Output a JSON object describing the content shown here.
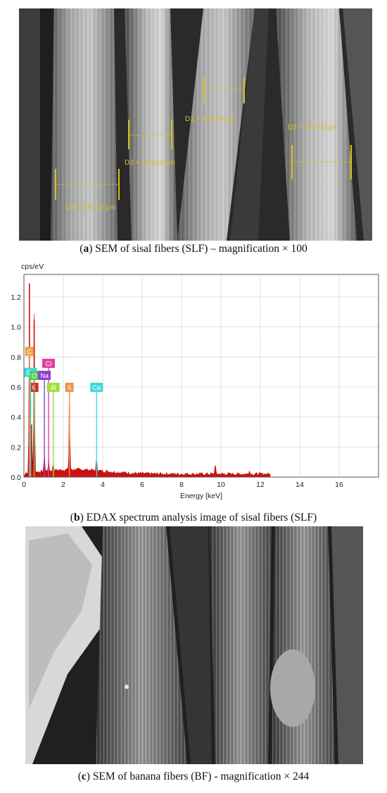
{
  "figure_a": {
    "caption_letter": "a",
    "caption_text": " SEM of sisal fibers (SLF) – magnification × 100",
    "measurements": [
      {
        "label": "D1 = 162.83 µm"
      },
      {
        "label": "D2 = 235.50 µm"
      },
      {
        "label": "D3 = 169.62 µm"
      },
      {
        "label": "D4 = 249.52 µm"
      }
    ]
  },
  "figure_b": {
    "caption_letter": "b",
    "caption_text": " EDAX spectrum analysis image of sisal fibers (SLF)",
    "chart_data": {
      "type": "line",
      "title": "",
      "xlabel": "Energy [keV]",
      "ylabel": "cps/eV",
      "xlim": [
        0,
        18
      ],
      "ylim": [
        0,
        1.35
      ],
      "x_ticks": [
        0,
        2,
        4,
        6,
        8,
        10,
        12,
        14,
        16
      ],
      "y_ticks": [
        0.0,
        0.2,
        0.4,
        0.6,
        0.8,
        1.0,
        1.2
      ],
      "y_tick_labels": [
        "0.0",
        "0.2",
        "0.4",
        "0.6",
        "0.8",
        "1.0",
        "1.2"
      ],
      "x_tick_labels": [
        "0",
        "2",
        "4",
        "6",
        "8",
        "10",
        "12",
        "14",
        "16"
      ],
      "grid": true,
      "spectrum_peaks": [
        {
          "x": 0.28,
          "y": 1.29
        },
        {
          "x": 0.39,
          "y": 0.35
        },
        {
          "x": 0.52,
          "y": 1.05
        },
        {
          "x": 1.04,
          "y": 0.12
        },
        {
          "x": 1.25,
          "y": 0.08
        },
        {
          "x": 1.49,
          "y": 0.06
        },
        {
          "x": 2.31,
          "y": 0.48
        },
        {
          "x": 3.69,
          "y": 0.09
        },
        {
          "x": 9.71,
          "y": 0.07
        },
        {
          "x": 11.44,
          "y": 0.03
        }
      ],
      "element_markers": [
        {
          "name": "C",
          "x": 0.28,
          "y": 0.84,
          "color": "#f0a040"
        },
        {
          "name": "K",
          "x": 0.52,
          "y": 0.6,
          "color": "#e02020"
        },
        {
          "name": "Ca",
          "x": 0.34,
          "y": 0.7,
          "color": "#40d8e0"
        },
        {
          "name": "O",
          "x": 0.52,
          "y": 0.68,
          "color": "#50d050"
        },
        {
          "name": "Cl",
          "x": 1.25,
          "y": 0.76,
          "color": "#e040a0"
        },
        {
          "name": "Na",
          "x": 1.04,
          "y": 0.68,
          "color": "#9040d0"
        },
        {
          "name": "Al",
          "x": 1.49,
          "y": 0.6,
          "color": "#a0e040"
        },
        {
          "name": "S",
          "x": 2.31,
          "y": 0.6,
          "color": "#f09050"
        },
        {
          "name": "Ca",
          "x": 3.69,
          "y": 0.6,
          "color": "#40d8e0"
        }
      ]
    }
  },
  "figure_c": {
    "caption_letter": "c",
    "caption_text": " SEM of banana fibers (BF) - magnification × 244"
  },
  "colors": {
    "measure_yellow": "#d8c21a",
    "spectrum_red": "#d01010",
    "chart_border": "#555555"
  }
}
